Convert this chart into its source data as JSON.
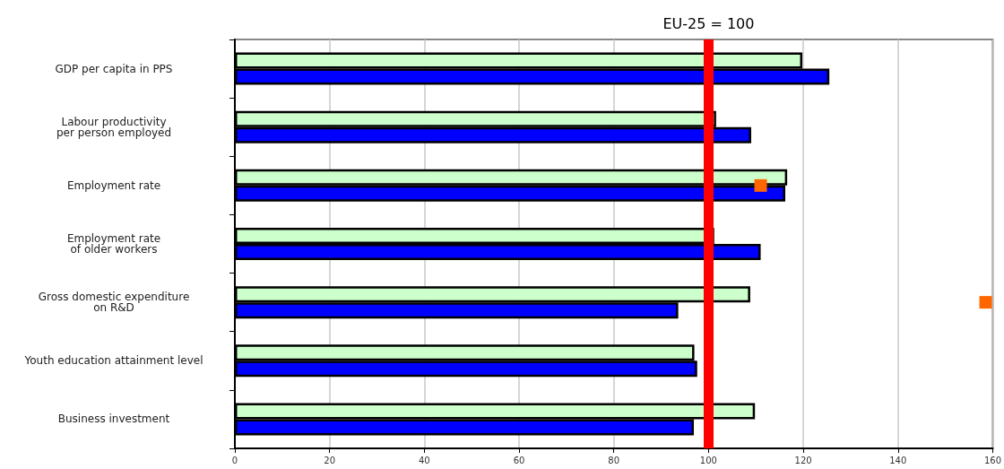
{
  "chart_data": {
    "type": "bar",
    "orientation": "horizontal",
    "categories": [
      "GDP per capita in PPS",
      "Labour productivity\nper person employed",
      "Employment rate",
      "Employment rate\nof older workers",
      "Gross domestic expenditure\non R&D",
      "Youth education attainment level",
      "Business investment"
    ],
    "series": [
      {
        "color": "#ccffcc",
        "values": [
          119.8,
          101.6,
          116.6,
          101.2,
          108.8,
          97,
          109.8
        ]
      },
      {
        "color": "#0000ff",
        "values": [
          125.5,
          109,
          116.2,
          111,
          93.6,
          97.6,
          96.9
        ]
      },
      {
        "type": "scatter",
        "marker": "square",
        "color": "#ff6600",
        "values": [
          null,
          null,
          111,
          null,
          158.5,
          null,
          null
        ]
      }
    ],
    "xlim": [
      0,
      160
    ],
    "xticks": [
      0,
      20,
      40,
      60,
      80,
      100,
      120,
      140,
      160
    ],
    "ref_lines": [
      {
        "axis": "x",
        "value": 100,
        "label": "EU-25 = 100",
        "color": "#ff0000"
      }
    ],
    "grid": "x"
  }
}
